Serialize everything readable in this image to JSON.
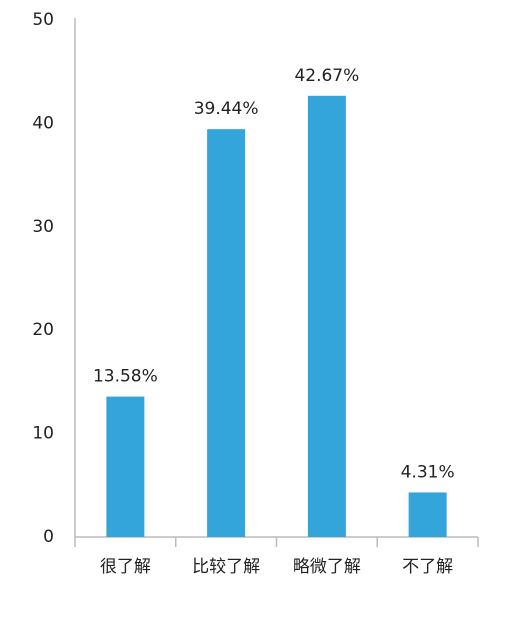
{
  "chart_data": {
    "type": "bar",
    "categories": [
      "很了解",
      "比较了解",
      "略微了解",
      "不了解"
    ],
    "values": [
      13.58,
      39.44,
      42.67,
      4.31
    ],
    "value_labels": [
      "13.58%",
      "39.44%",
      "42.67%",
      "4.31%"
    ],
    "color": "#33a5db",
    "ylim": [
      0,
      50
    ],
    "yticks": [
      0,
      10,
      20,
      30,
      40,
      50
    ]
  }
}
